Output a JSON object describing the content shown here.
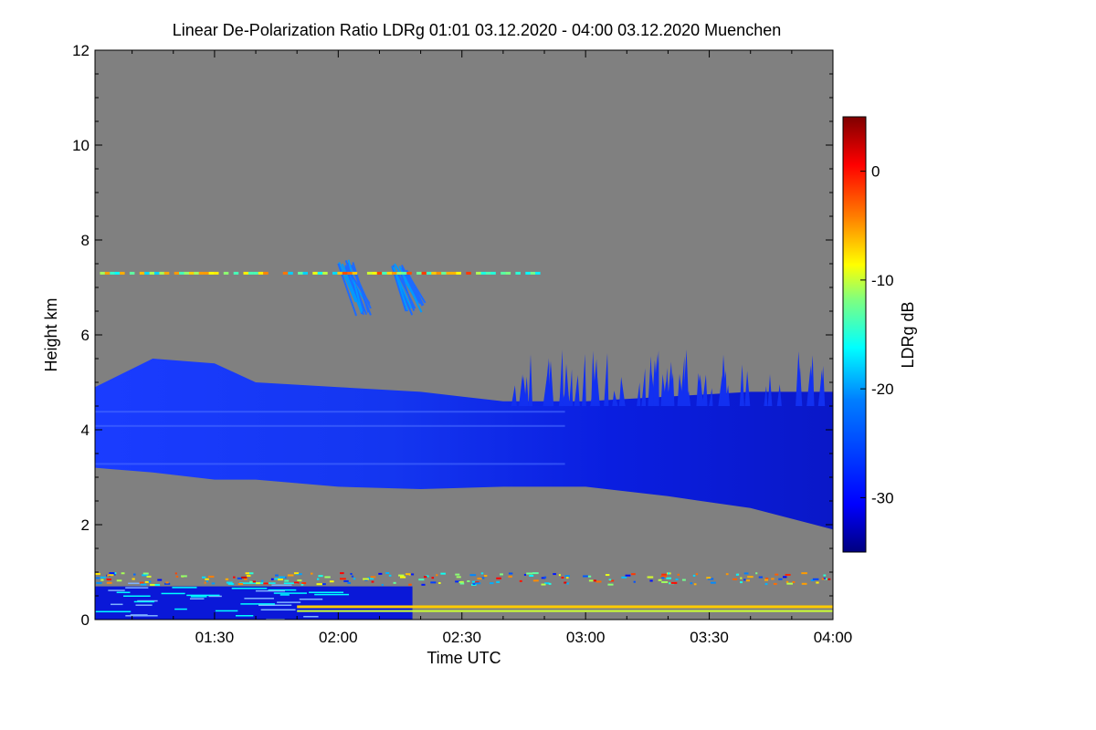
{
  "chart_data": {
    "type": "heatmap",
    "title": "Linear De-Polarization Ratio LDRg   01:01 03.12.2020 - 04:00 03.12.2020 Muenchen",
    "xlabel": "Time UTC",
    "ylabel": "Height km",
    "x_range": [
      "01:01",
      "04:00"
    ],
    "xlim_minutes": [
      61,
      240
    ],
    "ylim": [
      0,
      12
    ],
    "x_ticks": [
      {
        "label": "01:30",
        "minutes": 90
      },
      {
        "label": "02:00",
        "minutes": 120
      },
      {
        "label": "02:30",
        "minutes": 150
      },
      {
        "label": "03:00",
        "minutes": 180
      },
      {
        "label": "03:30",
        "minutes": 210
      },
      {
        "label": "04:00",
        "minutes": 240
      }
    ],
    "y_ticks": [
      0,
      2,
      4,
      6,
      8,
      10,
      12
    ],
    "colorbar": {
      "label": "LDRg dB",
      "range": [
        -35,
        5
      ],
      "ticks": [
        0,
        -10,
        -20,
        -30
      ],
      "colormap": [
        "#00007f",
        "#0000ff",
        "#007fff",
        "#00ffff",
        "#7fff7f",
        "#ffff00",
        "#ff7f00",
        "#ff0000",
        "#7f0000"
      ]
    },
    "background_color": "#808080",
    "features": [
      {
        "name": "main cloud layer",
        "ldr_db": -31,
        "boundary_minutes": [
          61,
          75,
          90,
          100,
          120,
          140,
          160,
          180,
          200,
          220,
          240
        ],
        "top_km": [
          4.9,
          5.5,
          5.4,
          5.0,
          4.9,
          4.8,
          4.6,
          4.6,
          4.7,
          4.8,
          4.8
        ],
        "base_km": [
          3.2,
          3.1,
          2.95,
          2.95,
          2.8,
          2.75,
          2.8,
          2.8,
          2.6,
          2.35,
          1.9
        ]
      },
      {
        "name": "cirrus streaks near 7 km",
        "ldr_db": -24,
        "span_minutes": [
          118,
          143
        ],
        "height_km": [
          6.4,
          7.6
        ]
      },
      {
        "name": "thin layer at 7.3 km",
        "ldr_db": -12,
        "span_minutes": [
          61,
          168
        ],
        "height_km": 7.3
      },
      {
        "name": "near-surface aerosol layer",
        "ldr_db": -30,
        "span_minutes": [
          61,
          138
        ],
        "height_km": [
          0,
          0.9
        ]
      },
      {
        "name": "low-level mixed layer",
        "ldr_db": -8,
        "span_minutes": [
          110,
          240
        ],
        "height_km": [
          0.2,
          1.0
        ]
      }
    ]
  }
}
